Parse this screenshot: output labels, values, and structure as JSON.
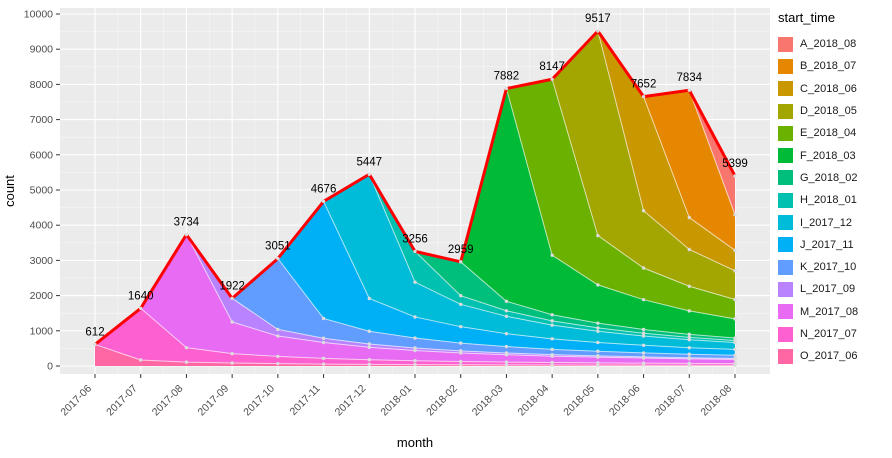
{
  "figure": {
    "xlabel": "month",
    "ylabel": "count",
    "legend_title": "start_time",
    "panel_bg": "#EBEBEB",
    "grid_color": "#FFFFFF",
    "total_line_color": "#FF0000",
    "point_color": "#DCDCDC",
    "tick_text_color": "#4D4D4D"
  },
  "chart_data": {
    "type": "area",
    "stacked": true,
    "x": [
      "2017-06",
      "2017-07",
      "2017-08",
      "2017-09",
      "2017-10",
      "2017-11",
      "2017-12",
      "2018-01",
      "2018-02",
      "2018-03",
      "2018-04",
      "2018-05",
      "2018-06",
      "2018-07",
      "2018-08"
    ],
    "totals": [
      612,
      1640,
      3734,
      1922,
      3051,
      4676,
      5447,
      3256,
      2959,
      7882,
      8147,
      9517,
      7652,
      7834,
      5399
    ],
    "ylim": [
      0,
      10000
    ],
    "yticks": [
      0,
      1000,
      2000,
      3000,
      4000,
      5000,
      6000,
      7000,
      8000,
      9000,
      10000
    ],
    "legend_position": "right",
    "series_bottom_to_top": [
      {
        "name": "O_2017_06",
        "color": "#FF67A4",
        "start_index": 0,
        "values": [
          612,
          171,
          110,
          86,
          67,
          55,
          46,
          40,
          34,
          31,
          28,
          24,
          23,
          21,
          19
        ]
      },
      {
        "name": "N_2017_07",
        "color": "#FD61D1",
        "start_index": 1,
        "values": [
          0,
          1469,
          411,
          264,
          206,
          162,
          132,
          110,
          95,
          81,
          73,
          66,
          59,
          54,
          50
        ]
      },
      {
        "name": "M_2017_08",
        "color": "#E76BF3",
        "start_index": 2,
        "values": [
          0,
          0,
          3213,
          900,
          578,
          450,
          353,
          289,
          241,
          209,
          177,
          161,
          145,
          129,
          119
        ]
      },
      {
        "name": "L_2017_09",
        "color": "#B983FF",
        "start_index": 3,
        "values": [
          0,
          0,
          0,
          672,
          188,
          121,
          94,
          74,
          60,
          50,
          44,
          37,
          34,
          30,
          27
        ]
      },
      {
        "name": "K_2017_10",
        "color": "#619CFF",
        "start_index": 4,
        "values": [
          0,
          0,
          0,
          0,
          2012,
          563,
          362,
          282,
          221,
          181,
          151,
          131,
          111,
          101,
          91
        ]
      },
      {
        "name": "J_2017_11",
        "color": "#00B0F6",
        "start_index": 5,
        "values": [
          0,
          0,
          0,
          0,
          0,
          3325,
          931,
          599,
          466,
          366,
          299,
          249,
          216,
          183,
          166
        ]
      },
      {
        "name": "I_2017_12",
        "color": "#00BCD8",
        "start_index": 6,
        "values": [
          0,
          0,
          0,
          0,
          0,
          0,
          3529,
          988,
          635,
          494,
          388,
          318,
          265,
          229,
          194
        ]
      },
      {
        "name": "H_2018_01",
        "color": "#00C0AF",
        "start_index": 7,
        "values": [
          0,
          0,
          0,
          0,
          0,
          0,
          0,
          874,
          245,
          157,
          122,
          96,
          79,
          66,
          57
        ]
      },
      {
        "name": "G_2018_02",
        "color": "#00BF7D",
        "start_index": 8,
        "values": [
          0,
          0,
          0,
          0,
          0,
          0,
          0,
          0,
          962,
          269,
          173,
          135,
          106,
          87,
          72
        ]
      },
      {
        "name": "F_2018_03",
        "color": "#00BA38",
        "start_index": 9,
        "values": [
          0,
          0,
          0,
          0,
          0,
          0,
          0,
          0,
          0,
          6044,
          1692,
          1088,
          846,
          665,
          544
        ]
      },
      {
        "name": "E_2018_04",
        "color": "#6BB100",
        "start_index": 10,
        "values": [
          0,
          0,
          0,
          0,
          0,
          0,
          0,
          0,
          0,
          0,
          5000,
          1400,
          900,
          700,
          550
        ]
      },
      {
        "name": "D_2018_05",
        "color": "#A3A500",
        "start_index": 11,
        "values": [
          0,
          0,
          0,
          0,
          0,
          0,
          0,
          0,
          0,
          0,
          0,
          5812,
          1627,
          1046,
          814
        ]
      },
      {
        "name": "C_2018_06",
        "color": "#C99800",
        "start_index": 12,
        "values": [
          0,
          0,
          0,
          0,
          0,
          0,
          0,
          0,
          0,
          0,
          0,
          0,
          3241,
          907,
          583
        ]
      },
      {
        "name": "B_2018_07",
        "color": "#E58700",
        "start_index": 13,
        "values": [
          0,
          0,
          0,
          0,
          0,
          0,
          0,
          0,
          0,
          0,
          0,
          0,
          0,
          3616,
          1012
        ]
      },
      {
        "name": "A_2018_08",
        "color": "#F8766D",
        "start_index": 14,
        "values": [
          0,
          0,
          0,
          0,
          0,
          0,
          0,
          0,
          0,
          0,
          0,
          0,
          0,
          0,
          1101
        ]
      }
    ]
  }
}
